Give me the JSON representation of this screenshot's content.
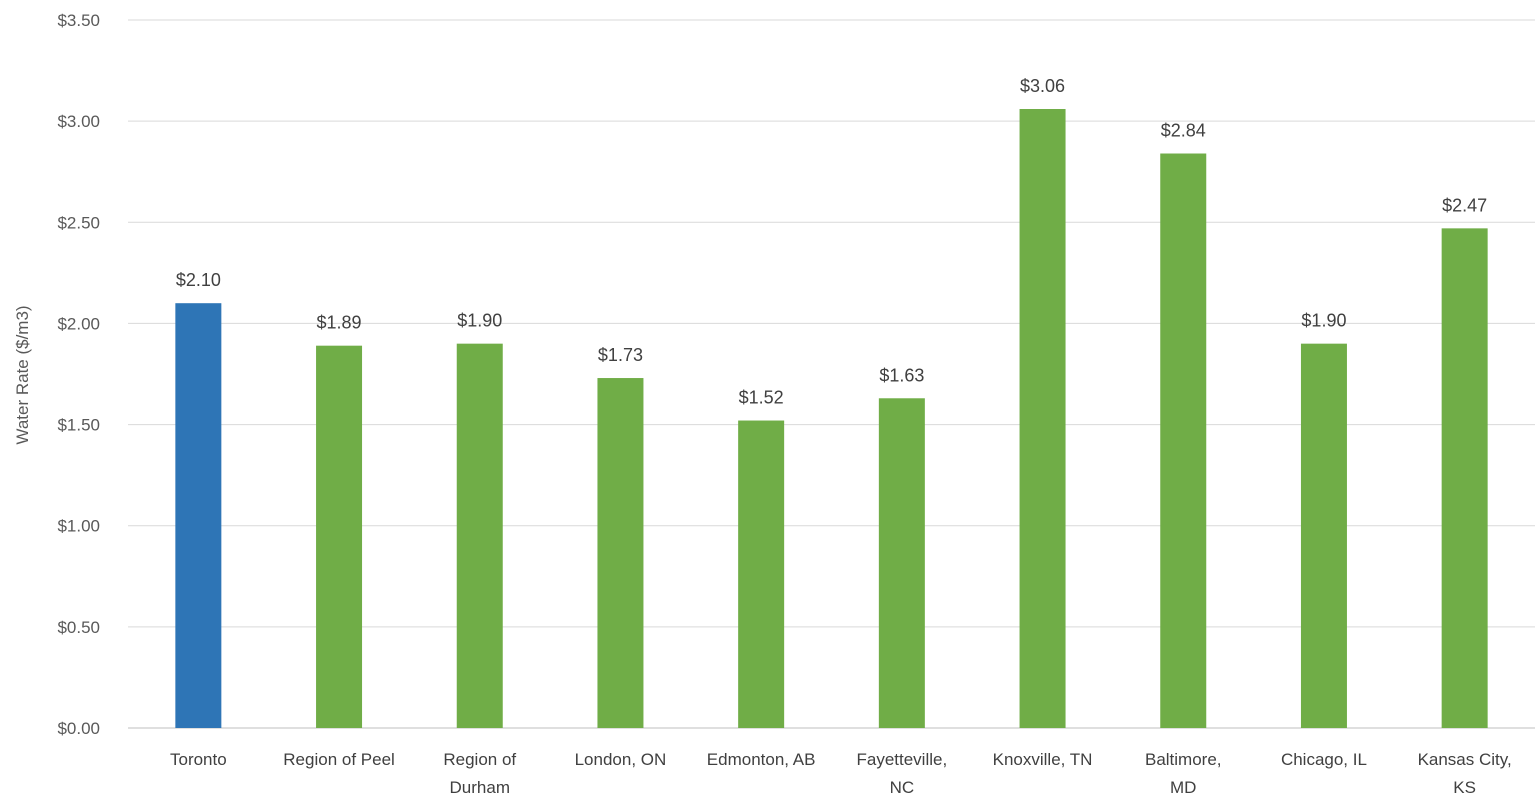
{
  "chart_data": {
    "type": "bar",
    "title": "",
    "xlabel": "",
    "ylabel": "Water Rate ($/m3)",
    "ylim": [
      0,
      3.5
    ],
    "yticks": [
      0,
      0.5,
      1.0,
      1.5,
      2.0,
      2.5,
      3.0,
      3.5
    ],
    "ytick_labels": [
      "$0.00",
      "$0.50",
      "$1.00",
      "$1.50",
      "$2.00",
      "$2.50",
      "$3.00",
      "$3.50"
    ],
    "grid": true,
    "categories": [
      [
        "Toronto"
      ],
      [
        "Region of Peel"
      ],
      [
        "Region of",
        "Durham"
      ],
      [
        "London, ON"
      ],
      [
        "Edmonton, AB"
      ],
      [
        "Fayetteville,",
        "NC"
      ],
      [
        "Knoxville, TN"
      ],
      [
        "Baltimore,",
        "MD"
      ],
      [
        "Chicago, IL"
      ],
      [
        "Kansas City,",
        "KS"
      ]
    ],
    "values": [
      2.1,
      1.89,
      1.9,
      1.73,
      1.52,
      1.63,
      3.06,
      2.84,
      1.9,
      2.47
    ],
    "value_labels": [
      "$2.10",
      "$1.89",
      "$1.90",
      "$1.73",
      "$1.52",
      "$1.63",
      "$3.06",
      "$2.84",
      "$1.90",
      "$2.47"
    ],
    "colors": {
      "highlight": "#2E75B6",
      "default": "#70AD47",
      "grid": "#D9D9D9"
    },
    "highlight_index": 0
  }
}
